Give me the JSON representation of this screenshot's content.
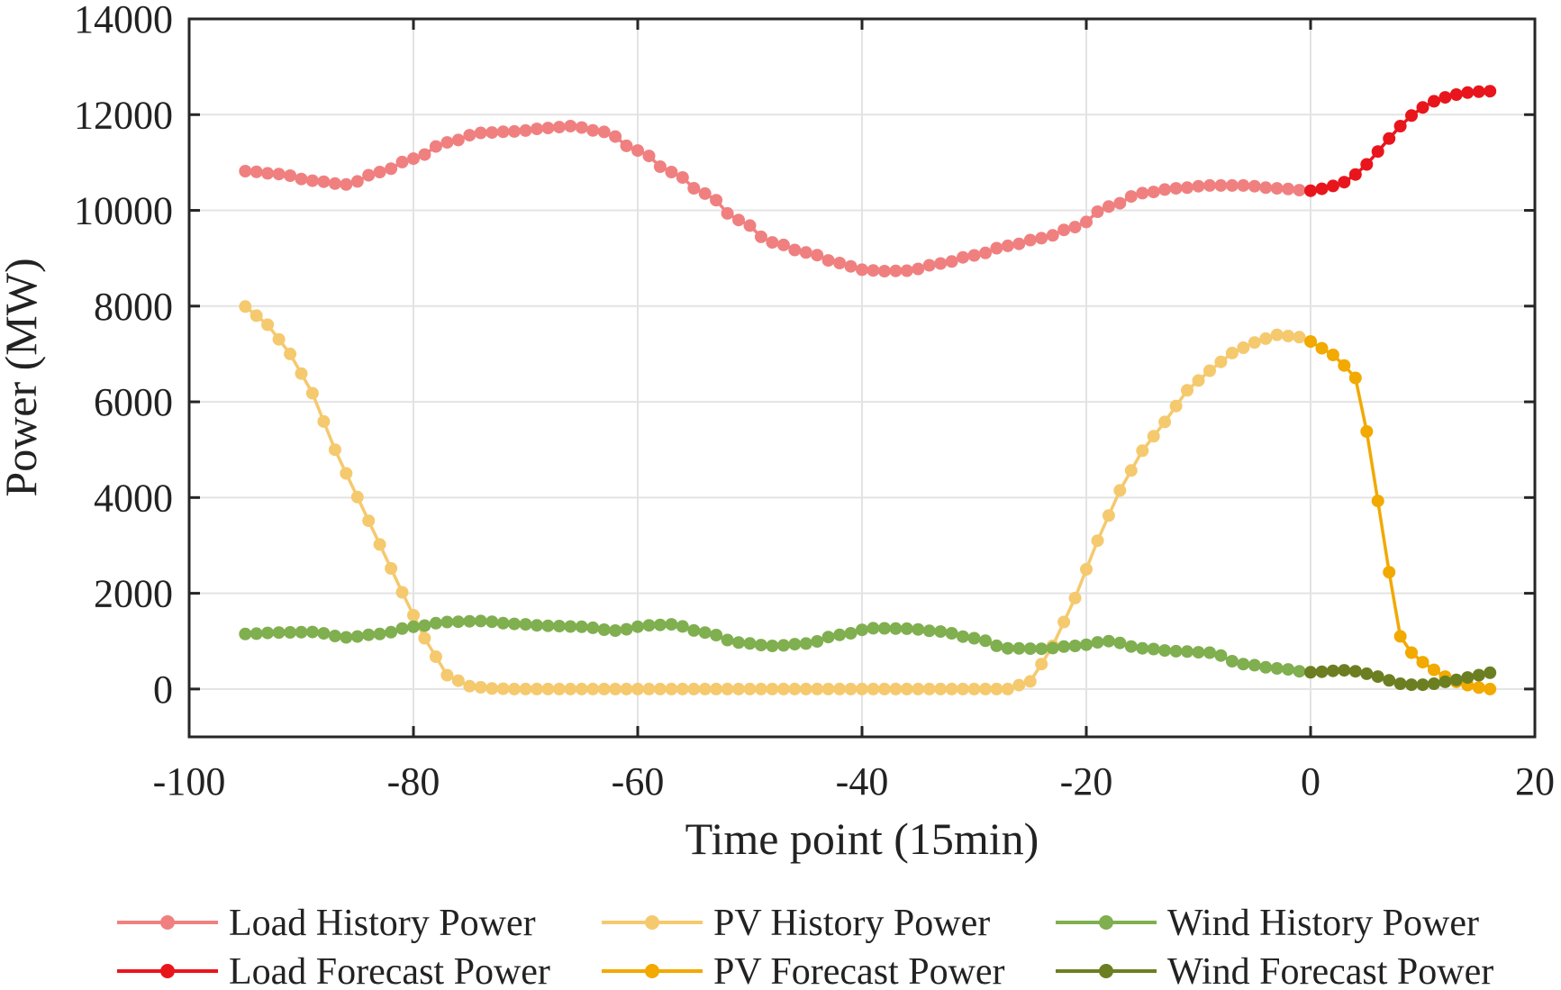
{
  "chart_data": {
    "type": "line",
    "title": "",
    "xlabel": "Time point (15min)",
    "ylabel": "Power (MW)",
    "xlim": [
      -100,
      20
    ],
    "ylim": [
      -1000,
      14000
    ],
    "xticks": [
      -100,
      -80,
      -60,
      -40,
      -20,
      0,
      20
    ],
    "yticks": [
      0,
      2000,
      4000,
      6000,
      8000,
      10000,
      12000,
      14000
    ],
    "xtick_labels": [
      "-100",
      "-80",
      "-60",
      "-40",
      "-20",
      "0",
      "20"
    ],
    "ytick_labels": [
      "0",
      "2000",
      "4000",
      "6000",
      "8000",
      "10000",
      "12000",
      "14000"
    ],
    "grid": true,
    "legend_position": "bottom",
    "legend_columns": 3,
    "history_x_range": [
      -95,
      0
    ],
    "forecast_x_range": [
      0,
      16
    ],
    "series": [
      {
        "name": "Load History Power",
        "color": "#F08080",
        "x": [
          -95,
          -92,
          -89,
          -86,
          -83,
          -80,
          -77,
          -74,
          -71,
          -68,
          -66,
          -63,
          -60,
          -57,
          -54,
          -51,
          -48,
          -45,
          -42,
          -40,
          -38,
          -36,
          -33,
          -30,
          -27,
          -24,
          -21,
          -18,
          -15,
          -12,
          -9,
          -6,
          -3,
          0
        ],
        "y": [
          10820,
          10760,
          10620,
          10540,
          10800,
          11080,
          11420,
          11620,
          11650,
          11720,
          11760,
          11640,
          11250,
          10800,
          10350,
          9800,
          9330,
          9120,
          8900,
          8760,
          8730,
          8740,
          8890,
          9060,
          9260,
          9420,
          9650,
          10080,
          10360,
          10460,
          10520,
          10520,
          10460,
          10410
        ]
      },
      {
        "name": "PV History Power",
        "color": "#F5C96E",
        "x": [
          -95,
          -93,
          -91,
          -89,
          -87,
          -85,
          -83,
          -81,
          -79,
          -77,
          -75,
          -73,
          -71,
          -68,
          -65,
          -60,
          -55,
          -50,
          -45,
          -40,
          -35,
          -30,
          -27,
          -25,
          -24,
          -23,
          -21,
          -19,
          -17,
          -15,
          -13,
          -11,
          -9,
          -7,
          -5,
          -3,
          -1,
          0
        ],
        "y": [
          7990,
          7610,
          7000,
          6180,
          5000,
          4010,
          3020,
          2020,
          1060,
          290,
          60,
          10,
          0,
          0,
          0,
          0,
          0,
          0,
          0,
          0,
          0,
          0,
          0,
          160,
          520,
          900,
          1900,
          3100,
          4150,
          4980,
          5580,
          6240,
          6650,
          7020,
          7240,
          7400,
          7350,
          7260
        ]
      },
      {
        "name": "Wind History Power",
        "color": "#7FAF4F",
        "x": [
          -95,
          -92,
          -89,
          -86,
          -83,
          -80,
          -77,
          -74,
          -71,
          -68,
          -65,
          -62,
          -59,
          -57,
          -54,
          -51,
          -48,
          -45,
          -42,
          -39,
          -36,
          -33,
          -30,
          -27,
          -24,
          -21,
          -18,
          -15,
          -12,
          -9,
          -6,
          -3,
          0
        ],
        "y": [
          1150,
          1180,
          1190,
          1080,
          1150,
          1300,
          1400,
          1420,
          1360,
          1320,
          1300,
          1220,
          1330,
          1350,
          1180,
          970,
          900,
          950,
          1130,
          1270,
          1260,
          1200,
          1060,
          850,
          840,
          900,
          1000,
          850,
          790,
          760,
          520,
          430,
          350
        ]
      },
      {
        "name": "Load Forecast Power",
        "color": "#E8161C",
        "x": [
          0,
          1,
          2,
          3,
          4,
          5,
          6,
          7,
          8,
          9,
          10,
          11,
          12,
          13,
          14,
          15,
          16
        ],
        "y": [
          10410,
          10450,
          10510,
          10590,
          10750,
          10960,
          11230,
          11500,
          11760,
          11980,
          12150,
          12280,
          12360,
          12420,
          12460,
          12480,
          12490
        ]
      },
      {
        "name": "PV Forecast Power",
        "color": "#F2A900",
        "x": [
          0,
          1,
          2,
          3,
          4,
          5,
          6,
          7,
          8,
          9,
          10,
          11,
          12,
          13,
          14,
          15,
          16
        ],
        "y": [
          7260,
          7120,
          6980,
          6760,
          6500,
          5380,
          3930,
          2440,
          1100,
          760,
          560,
          400,
          260,
          150,
          80,
          30,
          0
        ]
      },
      {
        "name": "Wind Forecast Power",
        "color": "#6B7F22",
        "x": [
          0,
          1,
          2,
          3,
          4,
          5,
          6,
          7,
          8,
          9,
          10,
          11,
          12,
          13,
          14,
          15,
          16
        ],
        "y": [
          350,
          360,
          380,
          390,
          370,
          320,
          260,
          180,
          110,
          90,
          90,
          110,
          150,
          190,
          240,
          290,
          340
        ]
      }
    ]
  }
}
